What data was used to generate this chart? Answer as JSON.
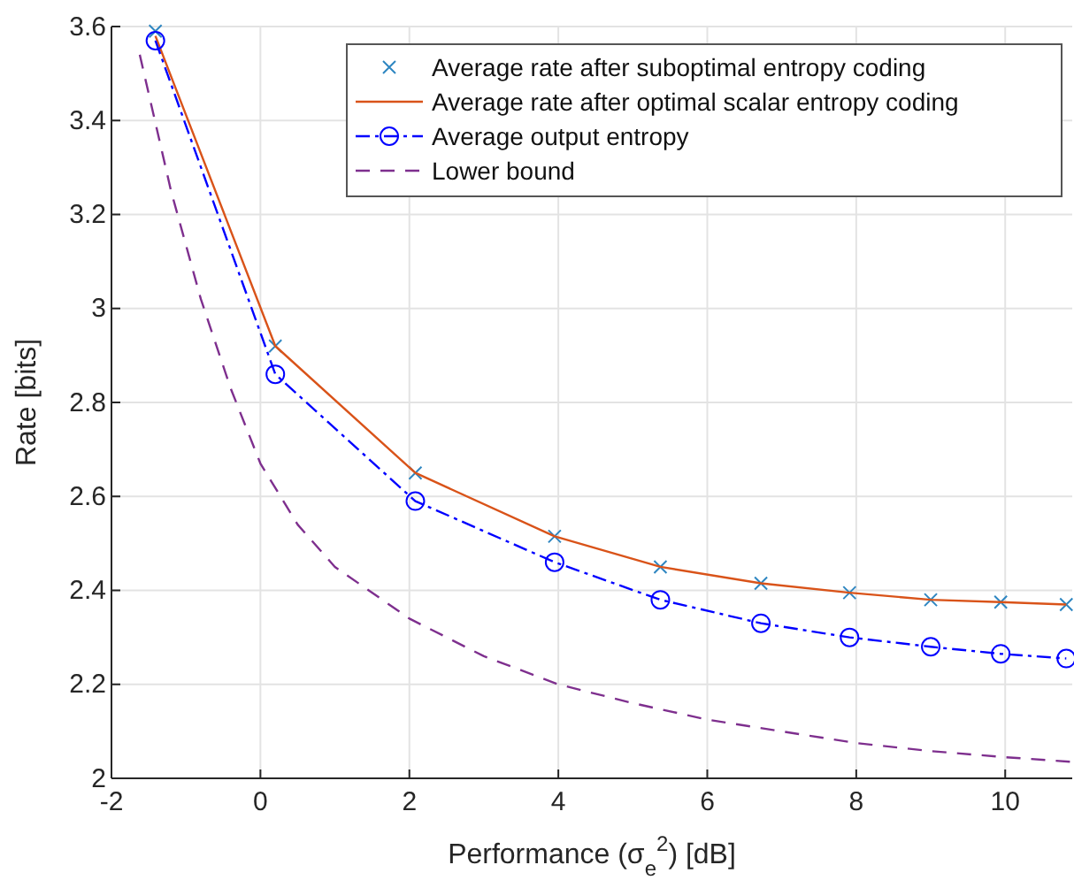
{
  "chart_data": {
    "type": "line",
    "xlabel": "Performance (σ$_{e}$$^{2}$) [dB]",
    "ylabel": "Rate [bits]",
    "xlim": [
      -2,
      10.9
    ],
    "xticks": [
      -2,
      0,
      2,
      4,
      6,
      8,
      10
    ],
    "ylim": [
      2,
      3.6
    ],
    "yticks": [
      2,
      2.2,
      2.4,
      2.6,
      2.8,
      3,
      3.2,
      3.4,
      3.6
    ],
    "grid": true,
    "legend": "top right",
    "series": [
      {
        "name": "Average rate after suboptimal entropy coding",
        "type": "scatter",
        "marker": "cross",
        "color": "#2e86c1",
        "x": [
          -1.41,
          0.2,
          2.08,
          3.95,
          5.37,
          6.72,
          7.91,
          9.0,
          9.94,
          10.82
        ],
        "values": [
          3.59,
          2.92,
          2.65,
          2.515,
          2.45,
          2.415,
          2.395,
          2.38,
          2.375,
          2.37
        ]
      },
      {
        "name": "Average rate after optimal scalar entropy coding",
        "type": "line",
        "marker": "none",
        "line_style": "solid",
        "color": "#d95319",
        "x": [
          -1.41,
          0.2,
          2.08,
          3.95,
          5.37,
          6.72,
          7.91,
          9.0,
          9.94,
          10.82
        ],
        "values": [
          3.58,
          2.92,
          2.65,
          2.515,
          2.45,
          2.415,
          2.395,
          2.38,
          2.375,
          2.37
        ]
      },
      {
        "name": "Average output entropy",
        "type": "line",
        "marker": "circle",
        "line_style": "dashdot",
        "color": "#0000ff",
        "x": [
          -1.41,
          0.2,
          2.08,
          3.95,
          5.37,
          6.72,
          7.91,
          9.0,
          9.94,
          10.82
        ],
        "values": [
          3.57,
          2.86,
          2.59,
          2.46,
          2.38,
          2.33,
          2.3,
          2.28,
          2.265,
          2.255
        ]
      },
      {
        "name": "Lower bound",
        "type": "line",
        "marker": "none",
        "line_style": "dashed",
        "color": "#7e2f8e",
        "x": [
          -1.62,
          -1.2,
          -0.8,
          -0.4,
          0,
          0.5,
          1,
          2,
          3,
          4,
          5,
          6,
          7,
          8,
          9,
          10,
          10.9
        ],
        "values": [
          3.54,
          3.25,
          3.02,
          2.83,
          2.67,
          2.54,
          2.45,
          2.34,
          2.26,
          2.2,
          2.16,
          2.125,
          2.1,
          2.075,
          2.058,
          2.045,
          2.035
        ]
      }
    ]
  }
}
